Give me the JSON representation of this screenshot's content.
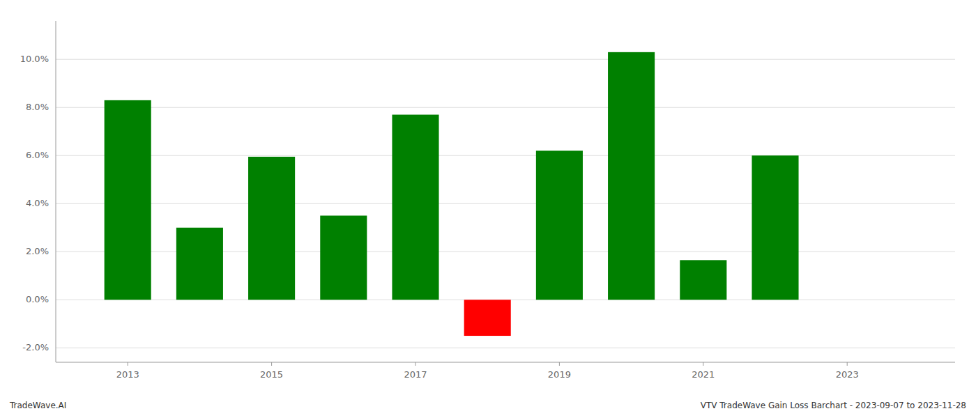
{
  "chart_data": {
    "type": "bar",
    "x": [
      2013,
      2014,
      2015,
      2016,
      2017,
      2018,
      2019,
      2020,
      2021,
      2022
    ],
    "values": [
      0.083,
      0.03,
      0.0595,
      0.035,
      0.077,
      -0.015,
      0.062,
      0.103,
      0.0165,
      0.06
    ],
    "colors": [
      "#008000",
      "#008000",
      "#008000",
      "#008000",
      "#008000",
      "#ff0000",
      "#008000",
      "#008000",
      "#008000",
      "#008000"
    ],
    "xlim": [
      2012.0,
      2024.5
    ],
    "xticks": [
      2013,
      2015,
      2017,
      2019,
      2021,
      2023
    ],
    "ylim": [
      -0.026,
      0.116
    ],
    "yticks": [
      {
        "value": -0.02,
        "label": "-2.0%"
      },
      {
        "value": 0.0,
        "label": "0.0%"
      },
      {
        "value": 0.02,
        "label": "2.0%"
      },
      {
        "value": 0.04,
        "label": "4.0%"
      },
      {
        "value": 0.06,
        "label": "6.0%"
      },
      {
        "value": 0.08,
        "label": "8.0%"
      },
      {
        "value": 0.1,
        "label": "10.0%"
      }
    ],
    "grid": true,
    "annotations": [
      "TradeWave.AI",
      "VTV TradeWave Gain Loss Barchart - 2023-09-07 to 2023-11-28"
    ]
  }
}
